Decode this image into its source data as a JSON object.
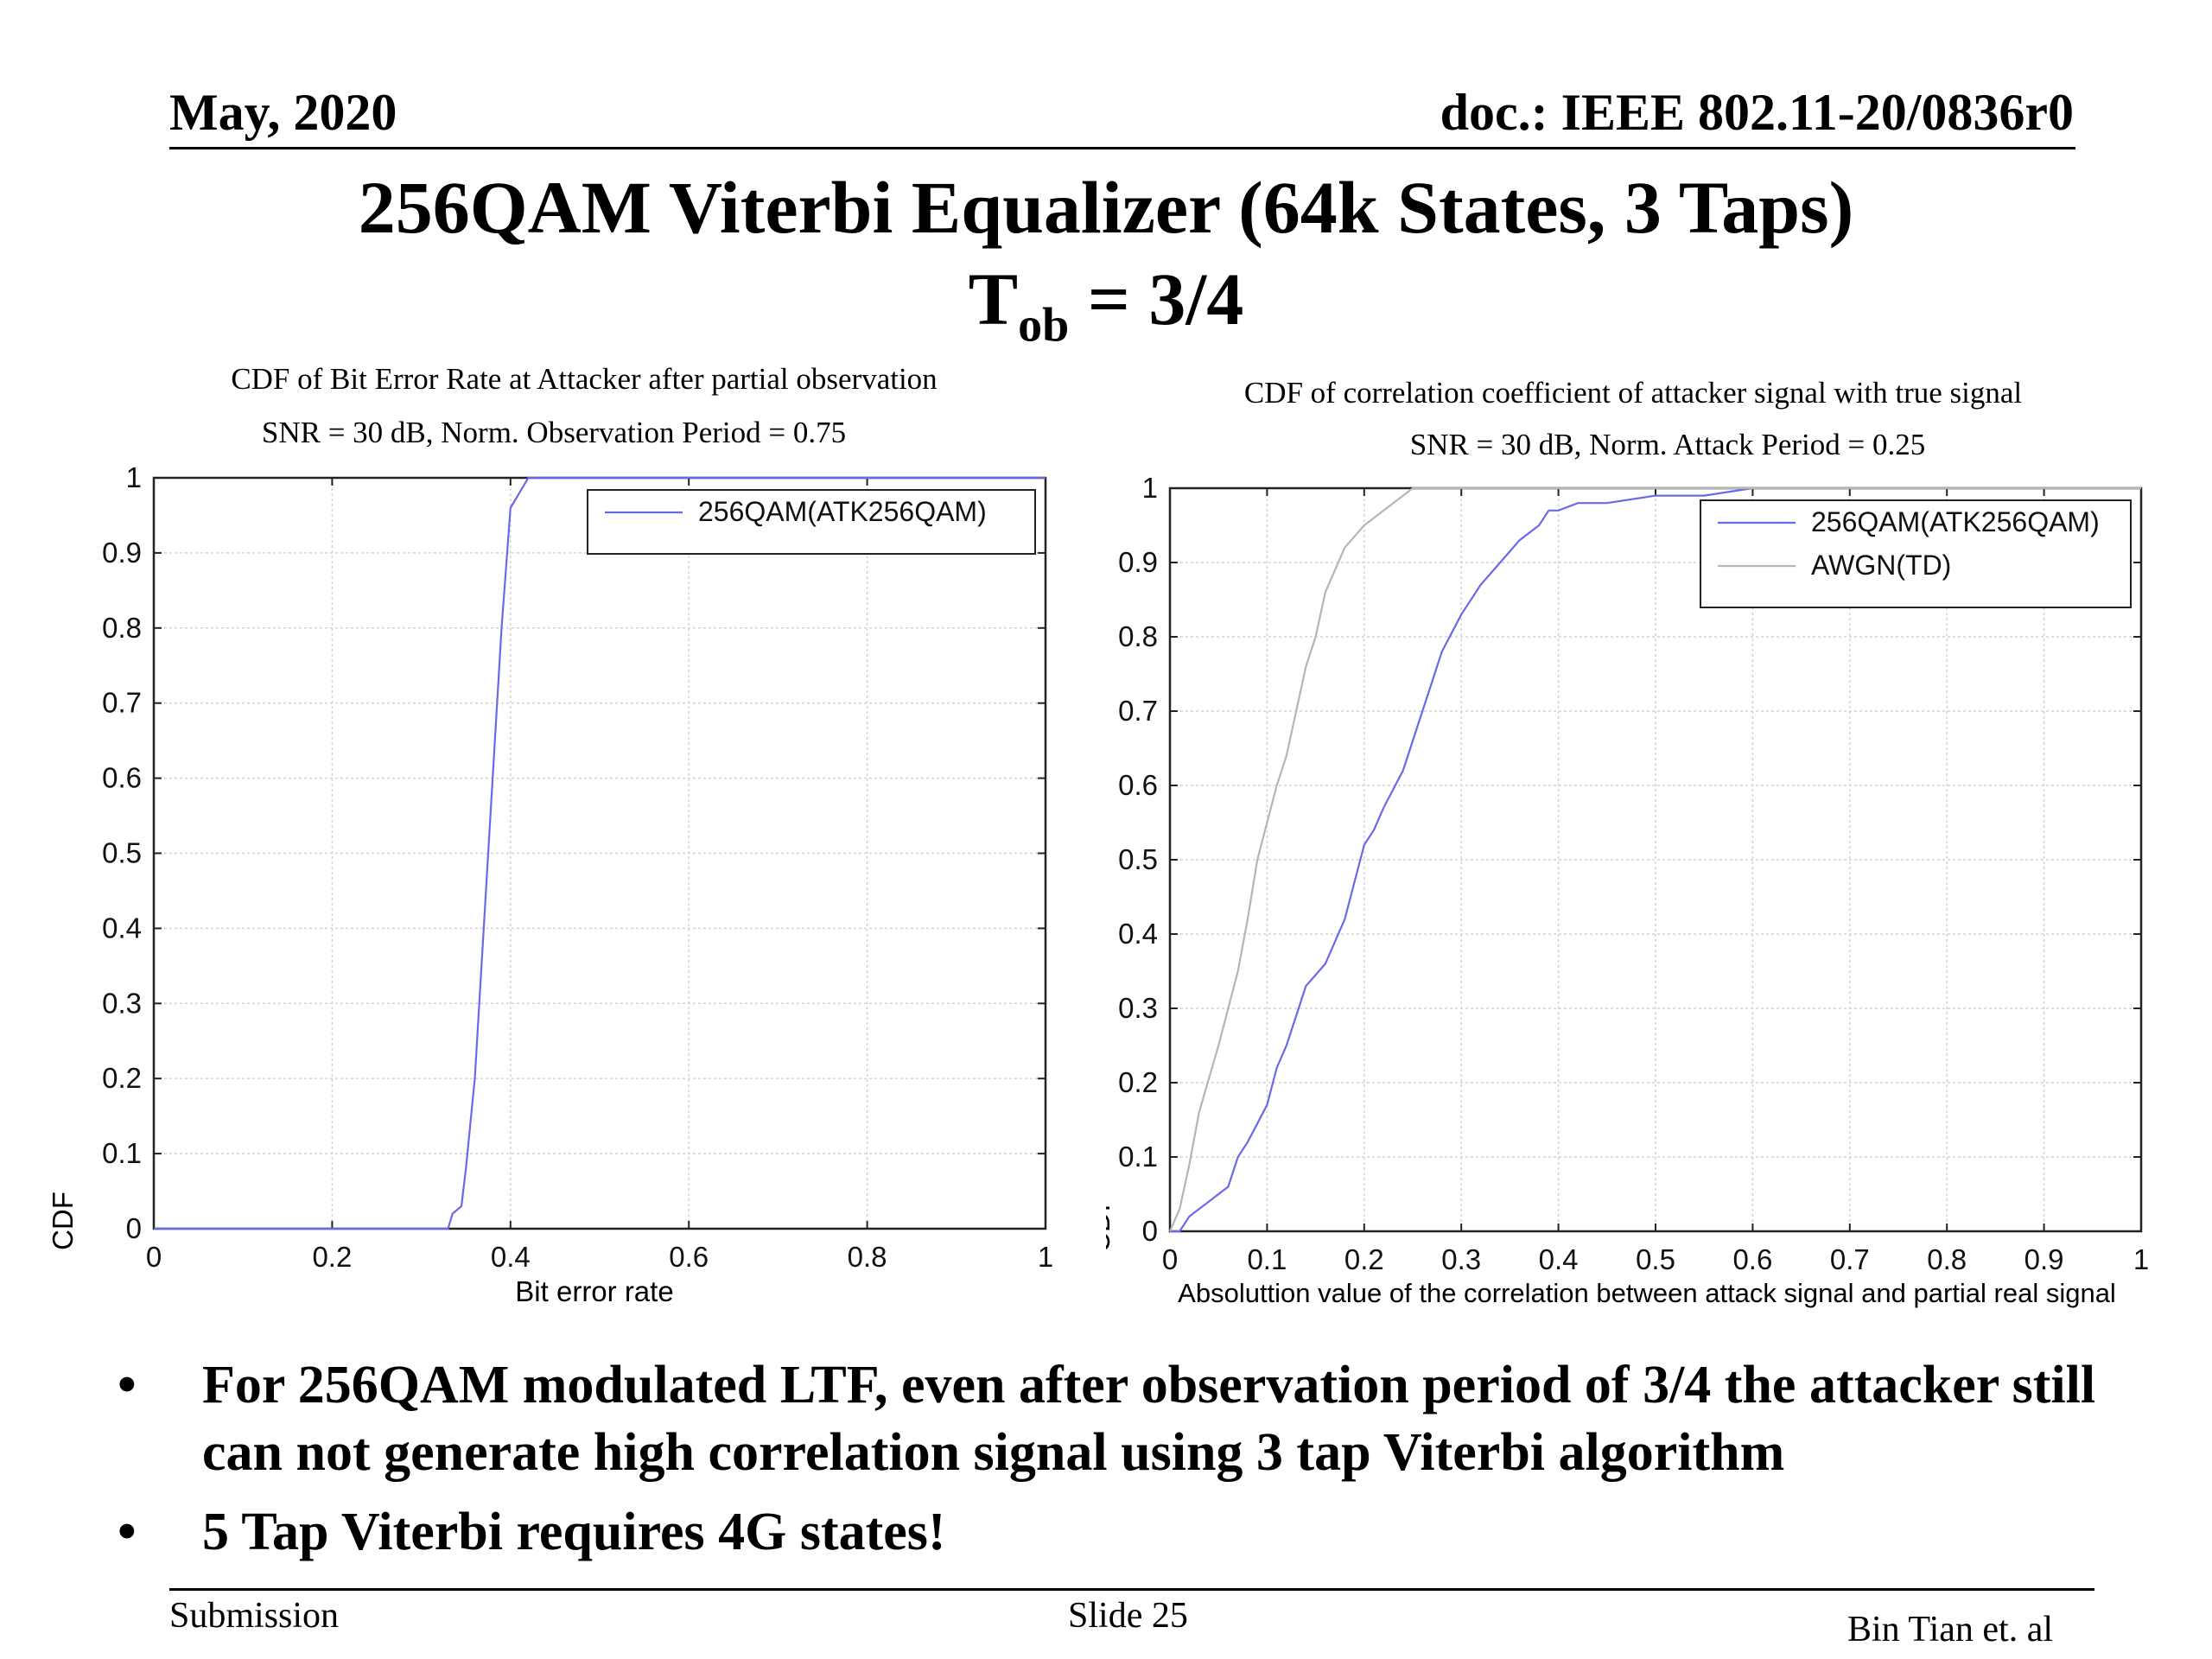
{
  "header": {
    "date": "May, 2020",
    "doc": "doc.: IEEE 802.11-20/0836r0"
  },
  "title": {
    "line1": "256QAM Viterbi Equalizer (64k States, 3 Taps)",
    "line2_main": "T",
    "line2_sub": "ob",
    "line2_rest": " = 3/4"
  },
  "bullets": [
    {
      "marker": "•",
      "text": "For 256QAM modulated LTF, even after observation period of 3/4 the attacker still can not generate high correlation signal using 3 tap Viterbi algorithm"
    },
    {
      "marker": "•",
      "text": "5 Tap Viterbi requires 4G states!"
    }
  ],
  "footer": {
    "left": "Submission",
    "center": "Slide 25",
    "right": "Bin Tian et. al"
  },
  "chart_data": [
    {
      "type": "line",
      "title": "CDF of Bit Error Rate at Attacker after partial observation",
      "subtitle": "SNR = 30 dB, Norm. Observation Period = 0.75",
      "xlabel": "Bit error rate",
      "ylabel": "CDF",
      "xlim": [
        0,
        1
      ],
      "ylim": [
        0,
        1
      ],
      "xticks": [
        "0",
        "0.2",
        "0.4",
        "0.6",
        "0.8",
        "1"
      ],
      "yticks": [
        "0",
        "0.1",
        "0.2",
        "0.3",
        "0.4",
        "0.5",
        "0.6",
        "0.7",
        "0.8",
        "0.9",
        "1"
      ],
      "grid": true,
      "legend_position": "top-right",
      "series": [
        {
          "name": "256QAM(ATK256QAM)",
          "color": "#6a6ae6",
          "x": [
            0,
            0.33,
            0.335,
            0.345,
            0.35,
            0.36,
            0.37,
            0.38,
            0.39,
            0.395,
            0.4,
            0.41,
            0.42,
            0.45,
            1
          ],
          "y": [
            0,
            0,
            0.02,
            0.03,
            0.08,
            0.2,
            0.4,
            0.6,
            0.8,
            0.88,
            0.96,
            0.98,
            1,
            1,
            1
          ]
        }
      ]
    },
    {
      "type": "line",
      "title": "CDF of correlation coefficient of attacker signal with true signal",
      "subtitle": "SNR = 30 dB, Norm. Attack Period = 0.25",
      "xlabel": "Absoluttion value of the correlation between attack signal and partial real signal",
      "ylabel": "CDF",
      "xlim": [
        0,
        1
      ],
      "ylim": [
        0,
        1
      ],
      "xticks": [
        "0",
        "0.1",
        "0.2",
        "0.3",
        "0.4",
        "0.5",
        "0.6",
        "0.7",
        "0.8",
        "0.9",
        "1"
      ],
      "yticks": [
        "0",
        "0.1",
        "0.2",
        "0.3",
        "0.4",
        "0.5",
        "0.6",
        "0.7",
        "0.8",
        "0.9",
        "1"
      ],
      "grid": true,
      "legend_position": "top-right",
      "series": [
        {
          "name": "256QAM(ATK256QAM)",
          "color": "#6a6ae6",
          "x": [
            0,
            0.01,
            0.02,
            0.04,
            0.06,
            0.07,
            0.08,
            0.1,
            0.11,
            0.12,
            0.13,
            0.14,
            0.16,
            0.18,
            0.19,
            0.2,
            0.21,
            0.22,
            0.24,
            0.25,
            0.26,
            0.27,
            0.28,
            0.3,
            0.32,
            0.34,
            0.36,
            0.38,
            0.39,
            0.4,
            0.42,
            0.45,
            0.5,
            0.55,
            0.6,
            1
          ],
          "y": [
            0,
            0,
            0.02,
            0.04,
            0.06,
            0.1,
            0.12,
            0.17,
            0.22,
            0.25,
            0.29,
            0.33,
            0.36,
            0.42,
            0.47,
            0.52,
            0.54,
            0.57,
            0.62,
            0.66,
            0.7,
            0.74,
            0.78,
            0.83,
            0.87,
            0.9,
            0.93,
            0.95,
            0.97,
            0.97,
            0.98,
            0.98,
            0.99,
            0.99,
            1,
            1
          ]
        },
        {
          "name": "AWGN(TD)",
          "color": "#b5b5b5",
          "x": [
            0,
            0.01,
            0.02,
            0.03,
            0.05,
            0.07,
            0.08,
            0.09,
            0.1,
            0.11,
            0.12,
            0.13,
            0.14,
            0.15,
            0.16,
            0.17,
            0.18,
            0.2,
            0.21,
            0.22,
            0.23,
            0.24,
            0.25,
            0.3,
            1
          ],
          "y": [
            0,
            0.03,
            0.09,
            0.16,
            0.25,
            0.35,
            0.42,
            0.5,
            0.55,
            0.6,
            0.64,
            0.7,
            0.76,
            0.8,
            0.86,
            0.89,
            0.92,
            0.95,
            0.96,
            0.97,
            0.98,
            0.99,
            1,
            1,
            1
          ]
        }
      ]
    }
  ]
}
